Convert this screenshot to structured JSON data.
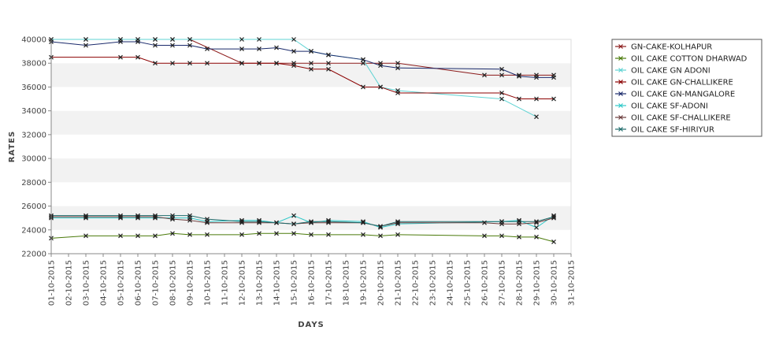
{
  "chart_data": {
    "type": "line",
    "title": "",
    "xlabel": "DAYS",
    "ylabel": "RATES",
    "ylim": [
      22000,
      40000
    ],
    "yticks": [
      "22000",
      "24000",
      "26000",
      "28000",
      "30000",
      "32000",
      "34000",
      "36000",
      "38000",
      "40000"
    ],
    "grid": "alternating horizontal bands",
    "legend_position": "top-right",
    "categories": [
      "01-10-2015",
      "02-10-2015",
      "03-10-2015",
      "04-10-2015",
      "05-10-2015",
      "06-10-2015",
      "07-10-2015",
      "08-10-2015",
      "09-10-2015",
      "10-10-2015",
      "11-10-2015",
      "12-10-2015",
      "13-10-2015",
      "14-10-2015",
      "15-10-2015",
      "16-10-2015",
      "17-10-2015",
      "18-10-2015",
      "19-10-2015",
      "20-10-2015",
      "21-10-2015",
      "22-10-2015",
      "23-10-2015",
      "24-10-2015",
      "25-10-2015",
      "26-10-2015",
      "27-10-2015",
      "28-10-2015",
      "29-10-2015",
      "30-10-2015",
      "31-10-2015"
    ],
    "series": [
      {
        "name": "GN-CAKE-KOLHAPUR",
        "color": "#8b1a1a",
        "points": [
          {
            "x": "01-10-2015",
            "y": 40000
          },
          {
            "x": "03-10-2015",
            "y": 40000
          },
          {
            "x": "05-10-2015",
            "y": 40000
          },
          {
            "x": "06-10-2015",
            "y": 40000
          },
          {
            "x": "07-10-2015",
            "y": 40000
          },
          {
            "x": "08-10-2015",
            "y": 40000
          },
          {
            "x": "09-10-2015",
            "y": 40000
          },
          {
            "x": "12-10-2015",
            "y": 38000
          },
          {
            "x": "13-10-2015",
            "y": 38000
          },
          {
            "x": "14-10-2015",
            "y": 38000
          },
          {
            "x": "15-10-2015",
            "y": 38000
          },
          {
            "x": "16-10-2015",
            "y": 38000
          },
          {
            "x": "17-10-2015",
            "y": 38000
          },
          {
            "x": "19-10-2015",
            "y": 38000
          },
          {
            "x": "20-10-2015",
            "y": 38000
          },
          {
            "x": "21-10-2015",
            "y": 38000
          },
          {
            "x": "26-10-2015",
            "y": 37000
          },
          {
            "x": "27-10-2015",
            "y": 37000
          },
          {
            "x": "28-10-2015",
            "y": 37000
          },
          {
            "x": "29-10-2015",
            "y": 37000
          },
          {
            "x": "30-10-2015",
            "y": 37000
          }
        ]
      },
      {
        "name": "OIL CAKE COTTON DHARWAD",
        "color": "#4a7a0a",
        "points": [
          {
            "x": "01-10-2015",
            "y": 23300
          },
          {
            "x": "03-10-2015",
            "y": 23500
          },
          {
            "x": "05-10-2015",
            "y": 23500
          },
          {
            "x": "06-10-2015",
            "y": 23500
          },
          {
            "x": "07-10-2015",
            "y": 23500
          },
          {
            "x": "08-10-2015",
            "y": 23700
          },
          {
            "x": "09-10-2015",
            "y": 23600
          },
          {
            "x": "10-10-2015",
            "y": 23600
          },
          {
            "x": "12-10-2015",
            "y": 23600
          },
          {
            "x": "13-10-2015",
            "y": 23700
          },
          {
            "x": "14-10-2015",
            "y": 23700
          },
          {
            "x": "15-10-2015",
            "y": 23700
          },
          {
            "x": "16-10-2015",
            "y": 23600
          },
          {
            "x": "17-10-2015",
            "y": 23600
          },
          {
            "x": "19-10-2015",
            "y": 23600
          },
          {
            "x": "20-10-2015",
            "y": 23500
          },
          {
            "x": "21-10-2015",
            "y": 23600
          },
          {
            "x": "26-10-2015",
            "y": 23500
          },
          {
            "x": "27-10-2015",
            "y": 23500
          },
          {
            "x": "28-10-2015",
            "y": 23400
          },
          {
            "x": "29-10-2015",
            "y": 23400
          },
          {
            "x": "30-10-2015",
            "y": 23000
          }
        ]
      },
      {
        "name": "OIL CAKE GN ADONI",
        "color": "#5fd3d3",
        "points": [
          {
            "x": "01-10-2015",
            "y": 40000
          },
          {
            "x": "03-10-2015",
            "y": 40000
          },
          {
            "x": "05-10-2015",
            "y": 40000
          },
          {
            "x": "06-10-2015",
            "y": 40000
          },
          {
            "x": "07-10-2015",
            "y": 40000
          },
          {
            "x": "08-10-2015",
            "y": 40000
          },
          {
            "x": "09-10-2015",
            "y": 40000
          },
          {
            "x": "12-10-2015",
            "y": 40000
          },
          {
            "x": "13-10-2015",
            "y": 40000
          },
          {
            "x": "15-10-2015",
            "y": 40000
          },
          {
            "x": "16-10-2015",
            "y": 39000
          },
          {
            "x": "17-10-2015",
            "y": 38700
          },
          {
            "x": "19-10-2015",
            "y": 38300
          },
          {
            "x": "20-10-2015",
            "y": 36000
          },
          {
            "x": "21-10-2015",
            "y": 35700
          },
          {
            "x": "27-10-2015",
            "y": 35000
          },
          {
            "x": "29-10-2015",
            "y": 33500
          }
        ]
      },
      {
        "name": "OIL CAKE GN-CHALLIKERE",
        "color": "#8b0000",
        "points": [
          {
            "x": "01-10-2015",
            "y": 38500
          },
          {
            "x": "05-10-2015",
            "y": 38500
          },
          {
            "x": "06-10-2015",
            "y": 38500
          },
          {
            "x": "07-10-2015",
            "y": 38000
          },
          {
            "x": "08-10-2015",
            "y": 38000
          },
          {
            "x": "09-10-2015",
            "y": 38000
          },
          {
            "x": "10-10-2015",
            "y": 38000
          },
          {
            "x": "12-10-2015",
            "y": 38000
          },
          {
            "x": "13-10-2015",
            "y": 38000
          },
          {
            "x": "14-10-2015",
            "y": 38000
          },
          {
            "x": "15-10-2015",
            "y": 37800
          },
          {
            "x": "16-10-2015",
            "y": 37500
          },
          {
            "x": "17-10-2015",
            "y": 37500
          },
          {
            "x": "19-10-2015",
            "y": 36000
          },
          {
            "x": "20-10-2015",
            "y": 36000
          },
          {
            "x": "21-10-2015",
            "y": 35500
          },
          {
            "x": "27-10-2015",
            "y": 35500
          },
          {
            "x": "28-10-2015",
            "y": 35000
          },
          {
            "x": "29-10-2015",
            "y": 35000
          },
          {
            "x": "30-10-2015",
            "y": 35000
          }
        ]
      },
      {
        "name": "OIL CAKE GN-MANGALORE",
        "color": "#1a2a6b",
        "points": [
          {
            "x": "01-10-2015",
            "y": 39800
          },
          {
            "x": "03-10-2015",
            "y": 39500
          },
          {
            "x": "05-10-2015",
            "y": 39800
          },
          {
            "x": "06-10-2015",
            "y": 39800
          },
          {
            "x": "07-10-2015",
            "y": 39500
          },
          {
            "x": "08-10-2015",
            "y": 39500
          },
          {
            "x": "09-10-2015",
            "y": 39500
          },
          {
            "x": "10-10-2015",
            "y": 39200
          },
          {
            "x": "12-10-2015",
            "y": 39200
          },
          {
            "x": "13-10-2015",
            "y": 39200
          },
          {
            "x": "14-10-2015",
            "y": 39300
          },
          {
            "x": "15-10-2015",
            "y": 39000
          },
          {
            "x": "16-10-2015",
            "y": 39000
          },
          {
            "x": "17-10-2015",
            "y": 38700
          },
          {
            "x": "19-10-2015",
            "y": 38300
          },
          {
            "x": "20-10-2015",
            "y": 37800
          },
          {
            "x": "21-10-2015",
            "y": 37600
          },
          {
            "x": "27-10-2015",
            "y": 37500
          },
          {
            "x": "28-10-2015",
            "y": 36900
          },
          {
            "x": "29-10-2015",
            "y": 36800
          },
          {
            "x": "30-10-2015",
            "y": 36800
          }
        ]
      },
      {
        "name": "OIL CAKE SF-ADONI",
        "color": "#2ec8c8",
        "points": [
          {
            "x": "01-10-2015",
            "y": 25000
          },
          {
            "x": "03-10-2015",
            "y": 25000
          },
          {
            "x": "05-10-2015",
            "y": 25000
          },
          {
            "x": "06-10-2015",
            "y": 25000
          },
          {
            "x": "07-10-2015",
            "y": 25000
          },
          {
            "x": "08-10-2015",
            "y": 25000
          },
          {
            "x": "09-10-2015",
            "y": 25000
          },
          {
            "x": "10-10-2015",
            "y": 24700
          },
          {
            "x": "12-10-2015",
            "y": 24800
          },
          {
            "x": "13-10-2015",
            "y": 24800
          },
          {
            "x": "14-10-2015",
            "y": 24600
          },
          {
            "x": "15-10-2015",
            "y": 25200
          },
          {
            "x": "16-10-2015",
            "y": 24600
          },
          {
            "x": "17-10-2015",
            "y": 24800
          },
          {
            "x": "19-10-2015",
            "y": 24700
          },
          {
            "x": "20-10-2015",
            "y": 24200
          },
          {
            "x": "21-10-2015",
            "y": 24500
          },
          {
            "x": "27-10-2015",
            "y": 24700
          },
          {
            "x": "28-10-2015",
            "y": 24800
          },
          {
            "x": "29-10-2015",
            "y": 24200
          },
          {
            "x": "30-10-2015",
            "y": 25200
          }
        ]
      },
      {
        "name": "OIL CAKE SF-CHALLIKERE",
        "color": "#6b3b3b",
        "points": [
          {
            "x": "01-10-2015",
            "y": 25100
          },
          {
            "x": "03-10-2015",
            "y": 25100
          },
          {
            "x": "05-10-2015",
            "y": 25100
          },
          {
            "x": "06-10-2015",
            "y": 25100
          },
          {
            "x": "07-10-2015",
            "y": 25100
          },
          {
            "x": "08-10-2015",
            "y": 24900
          },
          {
            "x": "09-10-2015",
            "y": 24800
          },
          {
            "x": "10-10-2015",
            "y": 24600
          },
          {
            "x": "12-10-2015",
            "y": 24600
          },
          {
            "x": "13-10-2015",
            "y": 24600
          },
          {
            "x": "14-10-2015",
            "y": 24600
          },
          {
            "x": "15-10-2015",
            "y": 24500
          },
          {
            "x": "16-10-2015",
            "y": 24600
          },
          {
            "x": "17-10-2015",
            "y": 24600
          },
          {
            "x": "19-10-2015",
            "y": 24600
          },
          {
            "x": "20-10-2015",
            "y": 24300
          },
          {
            "x": "21-10-2015",
            "y": 24600
          },
          {
            "x": "26-10-2015",
            "y": 24600
          },
          {
            "x": "27-10-2015",
            "y": 24500
          },
          {
            "x": "28-10-2015",
            "y": 24500
          },
          {
            "x": "29-10-2015",
            "y": 24600
          },
          {
            "x": "30-10-2015",
            "y": 25000
          }
        ]
      },
      {
        "name": "OIL CAKE SF-HIRIYUR",
        "color": "#1f6b6b",
        "points": [
          {
            "x": "01-10-2015",
            "y": 25200
          },
          {
            "x": "03-10-2015",
            "y": 25200
          },
          {
            "x": "05-10-2015",
            "y": 25200
          },
          {
            "x": "06-10-2015",
            "y": 25200
          },
          {
            "x": "07-10-2015",
            "y": 25200
          },
          {
            "x": "08-10-2015",
            "y": 25200
          },
          {
            "x": "09-10-2015",
            "y": 25200
          },
          {
            "x": "10-10-2015",
            "y": 24900
          },
          {
            "x": "12-10-2015",
            "y": 24700
          },
          {
            "x": "13-10-2015",
            "y": 24700
          },
          {
            "x": "14-10-2015",
            "y": 24600
          },
          {
            "x": "15-10-2015",
            "y": 24500
          },
          {
            "x": "16-10-2015",
            "y": 24700
          },
          {
            "x": "17-10-2015",
            "y": 24700
          },
          {
            "x": "19-10-2015",
            "y": 24600
          },
          {
            "x": "20-10-2015",
            "y": 24300
          },
          {
            "x": "21-10-2015",
            "y": 24700
          },
          {
            "x": "27-10-2015",
            "y": 24700
          },
          {
            "x": "28-10-2015",
            "y": 24700
          },
          {
            "x": "29-10-2015",
            "y": 24700
          },
          {
            "x": "30-10-2015",
            "y": 25100
          }
        ]
      }
    ]
  }
}
